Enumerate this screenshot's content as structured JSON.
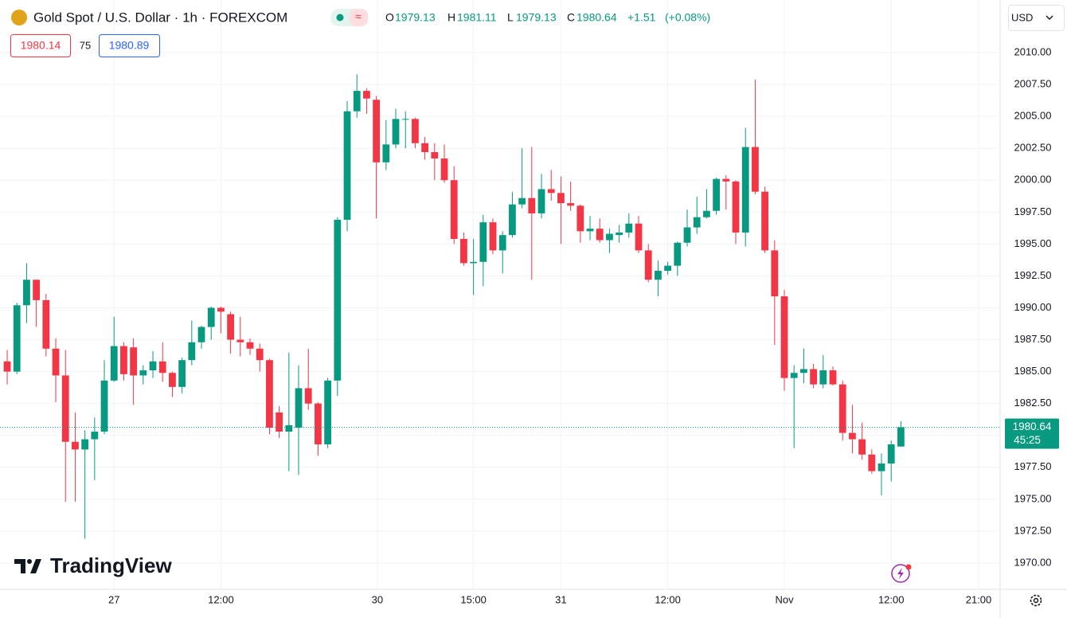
{
  "header": {
    "symbol": "Gold Spot / U.S. Dollar · 1h · FOREXCOM",
    "o_label": "O",
    "h_label": "H",
    "l_label": "L",
    "c_label": "C",
    "change": "+1.51",
    "change_pct": "(+0.08%)"
  },
  "trade": {
    "bid": "1980.14",
    "spread": "75",
    "ask": "1980.89"
  },
  "currency": "USD",
  "logo": "TradingView",
  "chart_data": {
    "type": "candlestick",
    "up_color": "#089981",
    "down_color": "#f23645",
    "grid": true,
    "countdown": "45:25",
    "open": [
      1985.8,
      1985.0,
      1990.2,
      1992.2,
      1990.6,
      1986.8,
      1984.7,
      1979.5,
      1978.9,
      1979.7,
      1980.3,
      1984.3,
      1987.0,
      1986.9,
      1984.7,
      1985.1,
      1985.8,
      1984.9,
      1983.8,
      1985.9,
      1987.3,
      1988.5,
      1990.0,
      1989.5,
      1987.5,
      1987.3,
      1986.8,
      1985.9,
      1981.8,
      1980.3,
      1980.6,
      1983.7,
      1982.5,
      1979.3,
      1984.3,
      1996.9,
      2005.4,
      2007.0,
      2006.3,
      2001.4,
      2002.8,
      2004.8,
      2004.8,
      2002.9,
      2002.2,
      2001.7,
      2000.0,
      1995.4,
      1993.5,
      1993.6,
      1996.7,
      1994.5,
      1995.7,
      1998.1,
      1998.6,
      1997.4,
      1999.3,
      1999.0,
      1998.2,
      1998.0,
      1996.0,
      1996.2,
      1995.3,
      1995.7,
      1995.9,
      1996.6,
      1994.5,
      1992.2,
      1992.9,
      1993.3,
      1995.1,
      1996.3,
      1997.1,
      1997.6,
      2000.1,
      1999.9,
      1995.9,
      2002.6,
      1999.1,
      1994.5,
      1990.9,
      1984.5,
      1984.9,
      1985.2,
      1984.0,
      1985.1,
      1984.0,
      1980.2,
      1979.7,
      1978.5,
      1977.2,
      1977.8,
      1979.13
    ],
    "high": [
      1986.7,
      1990.4,
      1993.5,
      1992.2,
      1991.1,
      1987.6,
      1986.7,
      1981.8,
      1980.4,
      1981.4,
      1985.9,
      1989.3,
      1987.3,
      1987.6,
      1985.5,
      1986.6,
      1987.3,
      1985.0,
      1986.1,
      1989.0,
      1988.6,
      1990.1,
      1990.1,
      1989.7,
      1989.3,
      1987.6,
      1987.2,
      1986.0,
      1982.3,
      1986.5,
      1985.5,
      1986.8,
      1982.6,
      1984.5,
      1997.1,
      2006.2,
      2008.3,
      2007.2,
      2006.6,
      2004.7,
      2005.6,
      2005.4,
      2004.9,
      2003.4,
      2002.9,
      2002.8,
      2001.1,
      1995.9,
      1995.4,
      1997.3,
      1997.0,
      1996.0,
      1999.1,
      2002.5,
      2002.6,
      2000.5,
      2000.8,
      2000.3,
      1999.9,
      1998.1,
      1997.2,
      1997.0,
      1996.2,
      1996.5,
      1997.4,
      1997.2,
      1995.0,
      1993.7,
      1993.6,
      1995.2,
      1997.7,
      1998.7,
      1999.3,
      2000.2,
      2000.4,
      2000.0,
      2004.1,
      2007.9,
      1999.5,
      1995.3,
      1991.4,
      1985.5,
      1986.8,
      1985.6,
      1986.3,
      1985.4,
      1984.3,
      1982.4,
      1981.0,
      1978.9,
      1978.6,
      1979.6,
      1981.11
    ],
    "low": [
      1984.0,
      1984.8,
      1988.8,
      1988.5,
      1986.2,
      1982.6,
      1974.8,
      1974.8,
      1971.9,
      1976.5,
      1980.1,
      1984.2,
      1984.3,
      1982.4,
      1984.0,
      1984.5,
      1984.2,
      1983.0,
      1983.3,
      1985.5,
      1986.8,
      1987.5,
      1988.0,
      1986.4,
      1986.2,
      1986.3,
      1985.0,
      1980.1,
      1979.8,
      1977.2,
      1976.9,
      1982.0,
      1978.4,
      1979.0,
      1983.1,
      1996.0,
      2004.9,
      2005.2,
      1997.0,
      2000.8,
      2002.5,
      2002.5,
      2002.5,
      2001.6,
      2000.0,
      1999.8,
      1995.0,
      1993.3,
      1991.0,
      1991.7,
      1994.2,
      1992.7,
      1995.5,
      1997.8,
      1992.2,
      1997.0,
      1998.4,
      1995.0,
      1997.6,
      1995.1,
      1995.3,
      1995.1,
      1994.3,
      1995.1,
      1995.5,
      1994.3,
      1992.0,
      1990.9,
      1992.6,
      1992.5,
      1994.8,
      1995.8,
      1997.0,
      1997.3,
      1997.7,
      1995.0,
      1994.8,
      1998.9,
      1994.3,
      1987.1,
      1983.5,
      1979.0,
      1984.1,
      1983.7,
      1983.7,
      1983.9,
      1979.6,
      1978.6,
      1978.1,
      1977.0,
      1975.3,
      1976.4,
      1979.13
    ],
    "close": [
      1985.0,
      1990.2,
      1992.2,
      1990.6,
      1986.8,
      1984.7,
      1979.5,
      1978.9,
      1979.7,
      1980.3,
      1984.3,
      1987.0,
      1984.8,
      1984.7,
      1985.1,
      1985.8,
      1984.9,
      1983.8,
      1985.9,
      1987.3,
      1988.5,
      1990.0,
      1989.7,
      1987.5,
      1987.3,
      1986.8,
      1985.9,
      1980.6,
      1980.3,
      1980.8,
      1983.7,
      1982.5,
      1979.3,
      1984.3,
      1996.9,
      2005.4,
      2007.0,
      2006.4,
      2001.4,
      2002.8,
      2004.8,
      2004.8,
      2002.9,
      2002.2,
      2001.7,
      2000.0,
      1995.4,
      1993.5,
      1993.6,
      1996.7,
      1994.5,
      1995.7,
      1998.1,
      1998.6,
      1997.4,
      1999.3,
      1999.0,
      1998.2,
      1998.0,
      1996.0,
      1996.2,
      1995.3,
      1995.8,
      1995.9,
      1996.6,
      1994.5,
      1992.2,
      1992.9,
      1993.3,
      1995.1,
      1996.3,
      1997.1,
      1997.6,
      2000.1,
      1999.9,
      1995.9,
      2002.6,
      1999.1,
      1994.5,
      1990.9,
      1984.5,
      1984.9,
      1985.2,
      1984.0,
      1985.1,
      1984.0,
      1980.2,
      1979.7,
      1978.5,
      1977.2,
      1977.8,
      1979.3,
      1980.64
    ],
    "xlim": [
      -0.74,
      102.13
    ],
    "xticks": [
      {
        "value": 11,
        "label": "27"
      },
      {
        "value": 22,
        "label": "12:00"
      },
      {
        "value": 38.1,
        "label": "30"
      },
      {
        "value": 48,
        "label": "15:00"
      },
      {
        "value": 57,
        "label": "31"
      },
      {
        "value": 68,
        "label": "12:00"
      },
      {
        "value": 80,
        "label": "Nov"
      },
      {
        "value": 91,
        "label": "12:00"
      },
      {
        "value": 100,
        "label": "21:00"
      }
    ],
    "ylim": [
      1967.94,
      2014.12
    ],
    "yticks": [
      {
        "value": 1970,
        "label": "1970.00"
      },
      {
        "value": 1972.5,
        "label": "1972.50"
      },
      {
        "value": 1975,
        "label": "1975.00"
      },
      {
        "value": 1977.5,
        "label": "1977.50"
      },
      {
        "value": 1980,
        "label": "1980.00"
      },
      {
        "value": 1982.5,
        "label": "1982.50"
      },
      {
        "value": 1985,
        "label": "1985.00"
      },
      {
        "value": 1987.5,
        "label": "1987.50"
      },
      {
        "value": 1990,
        "label": "1990.00"
      },
      {
        "value": 1992.5,
        "label": "1992.50"
      },
      {
        "value": 1995,
        "label": "1995.00"
      },
      {
        "value": 1997.5,
        "label": "1997.50"
      },
      {
        "value": 2000,
        "label": "2000.00"
      },
      {
        "value": 2002.5,
        "label": "2002.50"
      },
      {
        "value": 2005,
        "label": "2005.00"
      },
      {
        "value": 2007.5,
        "label": "2007.50"
      },
      {
        "value": 2010,
        "label": "2010.00"
      }
    ]
  }
}
